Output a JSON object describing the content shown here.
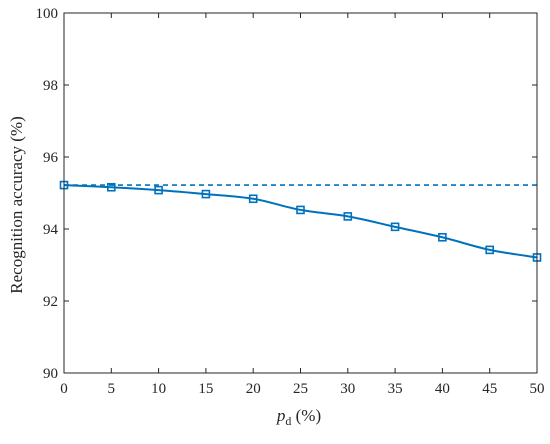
{
  "chart_data": {
    "type": "line",
    "title": "",
    "xlabel": {
      "italic": "p",
      "subscript": "d",
      "unit": " (%)"
    },
    "ylabel": "Recognition accuracy (%)",
    "xlim": [
      0,
      50
    ],
    "ylim": [
      90,
      100
    ],
    "x_ticks": [
      0,
      5,
      10,
      15,
      20,
      25,
      30,
      35,
      40,
      45,
      50
    ],
    "y_ticks": [
      90,
      92,
      94,
      96,
      98,
      100
    ],
    "grid": false,
    "x": [
      0,
      5,
      10,
      15,
      20,
      25,
      30,
      35,
      40,
      45,
      50
    ],
    "series": [
      {
        "values": [
          95.22,
          95.16,
          95.08,
          94.97,
          94.84,
          94.53,
          94.35,
          94.06,
          93.77,
          93.42,
          93.21
        ],
        "style": "solid",
        "marker": "square",
        "color": "#0072BD"
      }
    ],
    "reference_lines": [
      {
        "y": 95.22,
        "style": "dashed",
        "color": "#0072BD"
      }
    ]
  }
}
